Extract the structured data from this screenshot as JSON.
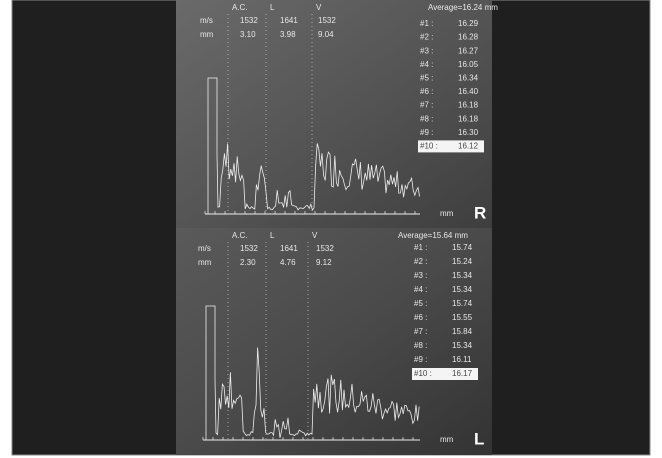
{
  "panels": [
    {
      "eye": "R",
      "average": "Average=16.24 mm",
      "headers": [
        "A.C.",
        "L",
        "V"
      ],
      "rows": [
        {
          "unit": "m/s",
          "values": [
            "1532",
            "1641",
            "1532"
          ]
        },
        {
          "unit": "mm",
          "values": [
            "3.10",
            "3.98",
            "9.04"
          ]
        }
      ],
      "measurements": [
        {
          "label": "#1 :",
          "value": "16.29"
        },
        {
          "label": "#2 :",
          "value": "16.28"
        },
        {
          "label": "#3 :",
          "value": "16.27"
        },
        {
          "label": "#4 :",
          "value": "16.05"
        },
        {
          "label": "#5 :",
          "value": "16.34"
        },
        {
          "label": "#6 :",
          "value": "16.40"
        },
        {
          "label": "#7 :",
          "value": "16.18"
        },
        {
          "label": "#8 :",
          "value": "16.18"
        },
        {
          "label": "#9 :",
          "value": "16.30"
        },
        {
          "label": "#10 :",
          "value": "16.12"
        }
      ],
      "axis_unit": "mm"
    },
    {
      "eye": "L",
      "average": "Average=15.64 mm",
      "headers": [
        "A.C.",
        "L",
        "V"
      ],
      "rows": [
        {
          "unit": "m/s",
          "values": [
            "1532",
            "1641",
            "1532"
          ]
        },
        {
          "unit": "mm",
          "values": [
            "2.30",
            "4.76",
            "9.12"
          ]
        }
      ],
      "measurements": [
        {
          "label": "#1 :",
          "value": "15.74"
        },
        {
          "label": "#2 :",
          "value": "15.24"
        },
        {
          "label": "#3 :",
          "value": "15.34"
        },
        {
          "label": "#4 :",
          "value": "15.34"
        },
        {
          "label": "#5 :",
          "value": "15.74"
        },
        {
          "label": "#6 :",
          "value": "15.55"
        },
        {
          "label": "#7 :",
          "value": "15.84"
        },
        {
          "label": "#8 :",
          "value": "15.34"
        },
        {
          "label": "#9 :",
          "value": "16.11"
        },
        {
          "label": "#10 :",
          "value": "16.17"
        }
      ],
      "axis_unit": "mm"
    }
  ]
}
